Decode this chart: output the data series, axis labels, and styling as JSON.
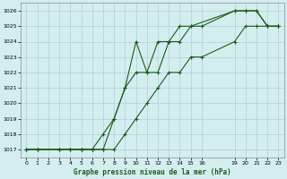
{
  "title": "Graphe pression niveau de la mer (hPa)",
  "bg_color": "#d4eef0",
  "grid_color": "#b0cfd4",
  "line_color": "#1a5c1a",
  "xlim": [
    -0.5,
    23.5
  ],
  "ylim": [
    1016.5,
    1026.5
  ],
  "xticks": [
    0,
    1,
    2,
    3,
    4,
    5,
    6,
    7,
    8,
    9,
    10,
    11,
    12,
    13,
    14,
    15,
    16,
    19,
    20,
    21,
    22,
    23
  ],
  "yticks": [
    1017,
    1018,
    1019,
    1020,
    1021,
    1022,
    1023,
    1024,
    1025,
    1026
  ],
  "line1_x": [
    0,
    1,
    3,
    4,
    5,
    6,
    7,
    8,
    9,
    10,
    11,
    12,
    13,
    14,
    15,
    19,
    20,
    21,
    22,
    23
  ],
  "line1_y": [
    1017,
    1017,
    1017,
    1017,
    1017,
    1017,
    1018,
    1019,
    1021,
    1022,
    1022,
    1024,
    1024,
    1025,
    1025,
    1026,
    1026,
    1026,
    1025,
    1025
  ],
  "line2_x": [
    0,
    1,
    3,
    4,
    5,
    6,
    7,
    8,
    9,
    10,
    11,
    12,
    13,
    14,
    15,
    16,
    19,
    20,
    21,
    22,
    23
  ],
  "line2_y": [
    1017,
    1017,
    1017,
    1017,
    1017,
    1017,
    1017,
    1019,
    1021,
    1024,
    1022,
    1022,
    1024,
    1024,
    1025,
    1025,
    1026,
    1026,
    1026,
    1025,
    1025
  ],
  "line3_x": [
    0,
    1,
    3,
    4,
    5,
    6,
    7,
    8,
    9,
    10,
    11,
    12,
    13,
    14,
    15,
    16,
    19,
    20,
    21,
    22,
    23
  ],
  "line3_y": [
    1017,
    1017,
    1017,
    1017,
    1017,
    1017,
    1017,
    1017,
    1018,
    1019,
    1020,
    1021,
    1022,
    1022,
    1023,
    1023,
    1024,
    1025,
    1025,
    1025,
    1025
  ]
}
